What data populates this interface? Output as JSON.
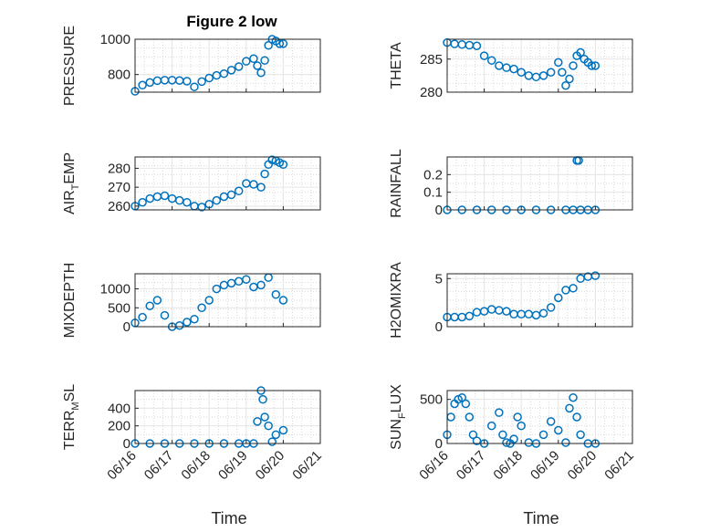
{
  "figure": {
    "title": "Figure 2 low",
    "xlabel": "Time",
    "marker_color": "#0072bd",
    "grid_color": "#d9d9d9",
    "axis_color": "#262626"
  },
  "chart_data": [
    {
      "type": "scatter",
      "ylabel": "PRESSURE",
      "title": "Figure 2 low",
      "xlim": [
        "06/16",
        "06/21"
      ],
      "ylim": [
        700,
        1000
      ],
      "yticks": [
        800,
        1000
      ],
      "xticks": [
        "06/16",
        "06/17",
        "06/18",
        "06/19",
        "06/20",
        "06/21"
      ],
      "x": [
        0,
        0.2,
        0.4,
        0.6,
        0.8,
        1.0,
        1.2,
        1.4,
        1.6,
        1.8,
        2.0,
        2.2,
        2.4,
        2.6,
        2.8,
        3.0,
        3.2,
        3.3,
        3.4,
        3.5,
        3.6,
        3.7,
        3.8,
        3.9,
        4.0
      ],
      "y": [
        705,
        740,
        755,
        765,
        768,
        768,
        766,
        762,
        730,
        760,
        780,
        795,
        805,
        825,
        845,
        875,
        890,
        850,
        810,
        880,
        965,
        1000,
        990,
        975,
        975
      ]
    },
    {
      "type": "scatter",
      "ylabel": "THETA",
      "xlim": [
        "06/16",
        "06/21"
      ],
      "ylim": [
        280,
        288
      ],
      "yticks": [
        280,
        285
      ],
      "xticks": [
        "06/16",
        "06/17",
        "06/18",
        "06/19",
        "06/20",
        "06/21"
      ],
      "x": [
        0,
        0.2,
        0.4,
        0.6,
        0.8,
        1.0,
        1.2,
        1.4,
        1.6,
        1.8,
        2.0,
        2.2,
        2.4,
        2.6,
        2.8,
        3.0,
        3.1,
        3.2,
        3.3,
        3.4,
        3.5,
        3.6,
        3.7,
        3.8,
        3.9,
        4.0
      ],
      "y": [
        287.5,
        287.3,
        287.2,
        287.1,
        287.0,
        285.5,
        284.8,
        284.0,
        283.7,
        283.5,
        283.0,
        282.5,
        282.3,
        282.5,
        283.0,
        284.5,
        283.0,
        281.0,
        282.0,
        284.0,
        285.5,
        286.0,
        285.0,
        284.5,
        284.0,
        284.0
      ]
    },
    {
      "type": "scatter",
      "ylabel": "AIR_TEMP",
      "xlim": [
        "06/16",
        "06/21"
      ],
      "ylim": [
        258,
        286
      ],
      "yticks": [
        260,
        270,
        280
      ],
      "xticks": [
        "06/16",
        "06/17",
        "06/18",
        "06/19",
        "06/20",
        "06/21"
      ],
      "x": [
        0,
        0.2,
        0.4,
        0.6,
        0.8,
        1.0,
        1.2,
        1.4,
        1.6,
        1.8,
        2.0,
        2.2,
        2.4,
        2.6,
        2.8,
        3.0,
        3.2,
        3.4,
        3.5,
        3.6,
        3.7,
        3.8,
        3.9,
        4.0
      ],
      "y": [
        260,
        262,
        264,
        265,
        265.5,
        264,
        263,
        262,
        260,
        259.5,
        261,
        263,
        265,
        266,
        268,
        272,
        271.5,
        270,
        277,
        282,
        284.5,
        284,
        283,
        282
      ]
    },
    {
      "type": "scatter",
      "ylabel": "RAINFALL",
      "xlim": [
        "06/16",
        "06/21"
      ],
      "ylim": [
        0,
        0.3
      ],
      "yticks": [
        0,
        0.1,
        0.2
      ],
      "xticks": [
        "06/16",
        "06/17",
        "06/18",
        "06/19",
        "06/20",
        "06/21"
      ],
      "x": [
        0,
        0.4,
        0.8,
        1.2,
        1.6,
        2.0,
        2.4,
        2.8,
        3.2,
        3.4,
        3.5,
        3.55,
        3.6,
        3.8,
        4.0
      ],
      "y": [
        0,
        0,
        0,
        0,
        0,
        0,
        0,
        0,
        0,
        0,
        0.28,
        0.28,
        0,
        0,
        0
      ]
    },
    {
      "type": "scatter",
      "ylabel": "MIXDEPTH",
      "xlim": [
        "06/16",
        "06/21"
      ],
      "ylim": [
        0,
        1400
      ],
      "yticks": [
        0,
        500,
        1000
      ],
      "xticks": [
        "06/16",
        "06/17",
        "06/18",
        "06/19",
        "06/20",
        "06/21"
      ],
      "x": [
        0,
        0.2,
        0.4,
        0.6,
        0.8,
        1.0,
        1.2,
        1.4,
        1.6,
        1.8,
        2.0,
        2.2,
        2.4,
        2.6,
        2.8,
        3.0,
        3.2,
        3.4,
        3.6,
        3.8,
        4.0
      ],
      "y": [
        100,
        250,
        550,
        700,
        300,
        0,
        30,
        120,
        200,
        500,
        700,
        1000,
        1100,
        1150,
        1200,
        1250,
        1050,
        1100,
        1300,
        850,
        700
      ]
    },
    {
      "type": "scatter",
      "ylabel": "H2OMIXRA",
      "xlim": [
        "06/16",
        "06/21"
      ],
      "ylim": [
        0,
        5.5
      ],
      "yticks": [
        0,
        5
      ],
      "xticks": [
        "06/16",
        "06/17",
        "06/18",
        "06/19",
        "06/20",
        "06/21"
      ],
      "x": [
        0,
        0.2,
        0.4,
        0.6,
        0.8,
        1.0,
        1.2,
        1.4,
        1.6,
        1.8,
        2.0,
        2.2,
        2.4,
        2.6,
        2.8,
        3.0,
        3.2,
        3.4,
        3.6,
        3.8,
        4.0
      ],
      "y": [
        1.0,
        1.0,
        1.0,
        1.1,
        1.5,
        1.6,
        1.8,
        1.7,
        1.6,
        1.3,
        1.3,
        1.3,
        1.2,
        1.4,
        2.0,
        3.0,
        3.8,
        4.0,
        5.0,
        5.2,
        5.3
      ]
    },
    {
      "type": "scatter",
      "ylabel": "TERR_MSL",
      "xlim": [
        "06/16",
        "06/21"
      ],
      "ylim": [
        0,
        600
      ],
      "yticks": [
        0,
        200,
        400
      ],
      "xticks": [
        "06/16",
        "06/17",
        "06/18",
        "06/19",
        "06/20",
        "06/21"
      ],
      "x": [
        0,
        0.4,
        0.8,
        1.2,
        1.6,
        2.0,
        2.4,
        2.8,
        3.0,
        3.2,
        3.3,
        3.4,
        3.45,
        3.5,
        3.6,
        3.7,
        3.8,
        4.0
      ],
      "y": [
        0,
        0,
        0,
        0,
        0,
        0,
        0,
        0,
        0,
        0,
        250,
        600,
        500,
        300,
        200,
        20,
        100,
        150
      ]
    },
    {
      "type": "scatter",
      "ylabel": "SUN_FLUX",
      "xlim": [
        "06/16",
        "06/21"
      ],
      "ylim": [
        0,
        600
      ],
      "yticks": [
        0,
        500
      ],
      "xticks": [
        "06/16",
        "06/17",
        "06/18",
        "06/19",
        "06/20",
        "06/21"
      ],
      "x": [
        0,
        0.1,
        0.2,
        0.3,
        0.4,
        0.5,
        0.6,
        0.7,
        0.8,
        1.0,
        1.2,
        1.4,
        1.5,
        1.6,
        1.7,
        1.8,
        1.9,
        2.0,
        2.2,
        2.4,
        2.6,
        2.8,
        3.0,
        3.2,
        3.3,
        3.4,
        3.5,
        3.6,
        3.8,
        4.0
      ],
      "y": [
        100,
        300,
        450,
        500,
        520,
        450,
        300,
        100,
        30,
        0,
        200,
        350,
        100,
        10,
        0,
        50,
        300,
        200,
        10,
        0,
        100,
        250,
        150,
        10,
        400,
        520,
        300,
        100,
        0,
        0
      ]
    }
  ]
}
